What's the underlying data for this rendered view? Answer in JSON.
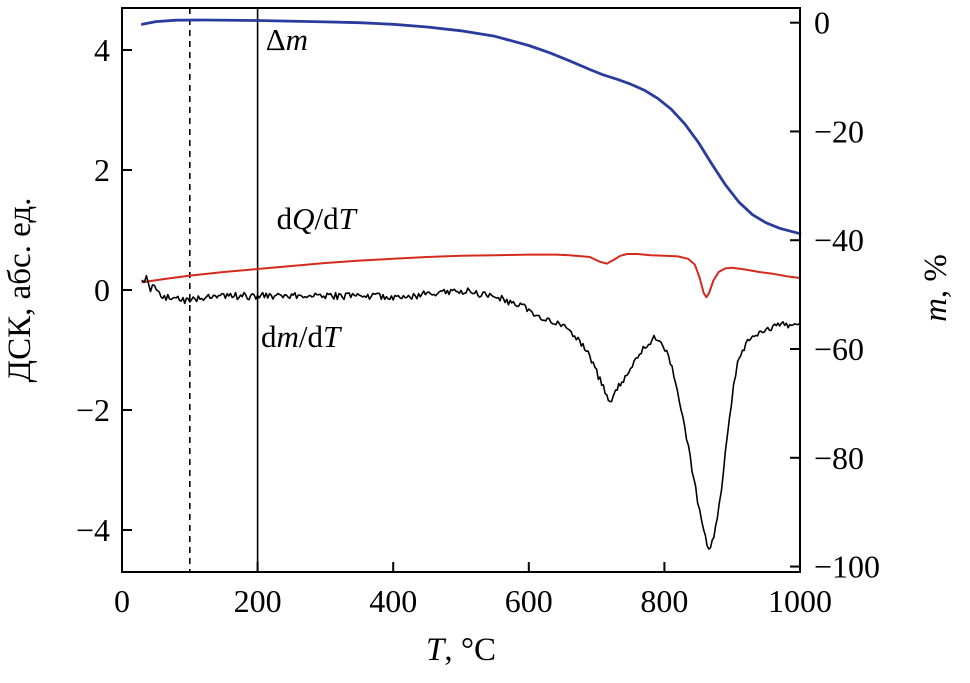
{
  "chart_data": {
    "type": "line",
    "title": "",
    "xlabel_parts": [
      {
        "t": "T",
        "i": 1
      },
      {
        "t": ", °C",
        "i": 0
      }
    ],
    "ylabel_left": "ДСК, абс. ед.",
    "ylabel_right_parts": [
      {
        "t": "m",
        "i": 1
      },
      {
        "t": ", %",
        "i": 0
      }
    ],
    "xlim": [
      0,
      1000
    ],
    "x_ticks": [
      0,
      200,
      400,
      600,
      800,
      1000
    ],
    "left_axis_label": "ДСК, абс. ед.",
    "left_ylim": [
      -4.7,
      4.7
    ],
    "left_ticks": [
      4,
      2,
      0,
      -2,
      -4
    ],
    "right_ylim": [
      -101,
      2.7
    ],
    "right_ticks": [
      0,
      -20,
      -40,
      -60,
      -80,
      -100
    ],
    "grid": false,
    "legend_position": "inline-labels",
    "vlines": [
      {
        "name": "vline-100",
        "x": 100,
        "style": "dashed"
      },
      {
        "name": "vline-200",
        "x": 200,
        "style": "solid"
      }
    ],
    "series": [
      {
        "name": "delta-m",
        "axis": "right",
        "color": "#2a3b9e",
        "width": 2.8,
        "points": [
          [
            30,
            -0.3
          ],
          [
            50,
            0.2
          ],
          [
            80,
            0.45
          ],
          [
            120,
            0.5
          ],
          [
            200,
            0.4
          ],
          [
            300,
            0.15
          ],
          [
            350,
            0
          ],
          [
            400,
            -0.3
          ],
          [
            450,
            -0.8
          ],
          [
            500,
            -1.5
          ],
          [
            550,
            -2.5
          ],
          [
            600,
            -4.2
          ],
          [
            630,
            -5.5
          ],
          [
            660,
            -7.0
          ],
          [
            690,
            -8.6
          ],
          [
            710,
            -9.6
          ],
          [
            730,
            -10.4
          ],
          [
            750,
            -11.3
          ],
          [
            770,
            -12.4
          ],
          [
            790,
            -13.9
          ],
          [
            810,
            -15.9
          ],
          [
            830,
            -18.6
          ],
          [
            850,
            -22.0
          ],
          [
            870,
            -26.0
          ],
          [
            890,
            -29.8
          ],
          [
            910,
            -33.0
          ],
          [
            930,
            -35.3
          ],
          [
            950,
            -36.8
          ],
          [
            970,
            -37.8
          ],
          [
            1000,
            -38.8
          ]
        ]
      },
      {
        "name": "dq-dt",
        "axis": "left",
        "color": "#d42a1e",
        "width": 2.0,
        "points": [
          [
            30,
            0.13
          ],
          [
            60,
            0.18
          ],
          [
            100,
            0.24
          ],
          [
            150,
            0.3
          ],
          [
            200,
            0.35
          ],
          [
            250,
            0.4
          ],
          [
            300,
            0.45
          ],
          [
            350,
            0.49
          ],
          [
            400,
            0.52
          ],
          [
            450,
            0.55
          ],
          [
            500,
            0.57
          ],
          [
            550,
            0.58
          ],
          [
            600,
            0.59
          ],
          [
            640,
            0.59
          ],
          [
            660,
            0.58
          ],
          [
            690,
            0.55
          ],
          [
            705,
            0.47
          ],
          [
            715,
            0.44
          ],
          [
            725,
            0.5
          ],
          [
            735,
            0.57
          ],
          [
            745,
            0.6
          ],
          [
            760,
            0.6
          ],
          [
            780,
            0.58
          ],
          [
            800,
            0.57
          ],
          [
            820,
            0.56
          ],
          [
            835,
            0.52
          ],
          [
            845,
            0.42
          ],
          [
            852,
            0.2
          ],
          [
            858,
            -0.05
          ],
          [
            862,
            -0.12
          ],
          [
            866,
            -0.05
          ],
          [
            872,
            0.15
          ],
          [
            880,
            0.3
          ],
          [
            890,
            0.36
          ],
          [
            900,
            0.37
          ],
          [
            920,
            0.34
          ],
          [
            940,
            0.3
          ],
          [
            960,
            0.27
          ],
          [
            980,
            0.23
          ],
          [
            1000,
            0.2
          ]
        ]
      },
      {
        "name": "dm-dt",
        "axis": "left",
        "color": "#000000",
        "width": 1.6,
        "noise": 0.06,
        "points": [
          [
            30,
            0.1
          ],
          [
            36,
            0.18
          ],
          [
            42,
            -0.02
          ],
          [
            48,
            0.12
          ],
          [
            55,
            -0.08
          ],
          [
            65,
            -0.12
          ],
          [
            80,
            -0.16
          ],
          [
            100,
            -0.17
          ],
          [
            130,
            -0.13
          ],
          [
            170,
            -0.1
          ],
          [
            220,
            -0.1
          ],
          [
            270,
            -0.1
          ],
          [
            320,
            -0.1
          ],
          [
            370,
            -0.11
          ],
          [
            400,
            -0.12
          ],
          [
            430,
            -0.1
          ],
          [
            460,
            -0.05
          ],
          [
            490,
            -0.02
          ],
          [
            510,
            -0.02
          ],
          [
            530,
            -0.08
          ],
          [
            560,
            -0.15
          ],
          [
            590,
            -0.28
          ],
          [
            620,
            -0.45
          ],
          [
            650,
            -0.6
          ],
          [
            670,
            -0.8
          ],
          [
            690,
            -1.1
          ],
          [
            705,
            -1.5
          ],
          [
            715,
            -1.75
          ],
          [
            722,
            -1.85
          ],
          [
            728,
            -1.7
          ],
          [
            735,
            -1.55
          ],
          [
            742,
            -1.45
          ],
          [
            750,
            -1.3
          ],
          [
            758,
            -1.15
          ],
          [
            766,
            -1.0
          ],
          [
            774,
            -0.9
          ],
          [
            782,
            -0.82
          ],
          [
            790,
            -0.8
          ],
          [
            798,
            -0.9
          ],
          [
            806,
            -1.1
          ],
          [
            814,
            -1.4
          ],
          [
            822,
            -1.8
          ],
          [
            830,
            -2.3
          ],
          [
            838,
            -2.8
          ],
          [
            846,
            -3.3
          ],
          [
            852,
            -3.7
          ],
          [
            858,
            -4.0
          ],
          [
            863,
            -4.25
          ],
          [
            868,
            -4.3
          ],
          [
            873,
            -4.1
          ],
          [
            878,
            -3.8
          ],
          [
            884,
            -3.3
          ],
          [
            890,
            -2.7
          ],
          [
            896,
            -2.1
          ],
          [
            902,
            -1.6
          ],
          [
            908,
            -1.25
          ],
          [
            915,
            -1.0
          ],
          [
            925,
            -0.8
          ],
          [
            940,
            -0.7
          ],
          [
            960,
            -0.62
          ],
          [
            980,
            -0.58
          ],
          [
            1000,
            -0.55
          ]
        ]
      }
    ],
    "labels": [
      {
        "name": "label-delta-m",
        "x": 212,
        "y": 4.0,
        "parts": [
          {
            "t": "Δ",
            "i": 0
          },
          {
            "t": "m",
            "i": 1
          }
        ]
      },
      {
        "name": "label-dq-dt",
        "x": 228,
        "y": 1.02,
        "parts": [
          {
            "t": "d",
            "i": 0
          },
          {
            "t": "Q",
            "i": 1
          },
          {
            "t": "/d",
            "i": 0
          },
          {
            "t": "T",
            "i": 1
          }
        ]
      },
      {
        "name": "label-dm-dt",
        "x": 205,
        "y": -0.95,
        "parts": [
          {
            "t": "d",
            "i": 0
          },
          {
            "t": "m",
            "i": 1
          },
          {
            "t": "/d",
            "i": 0
          },
          {
            "t": "T",
            "i": 1
          }
        ]
      }
    ]
  }
}
